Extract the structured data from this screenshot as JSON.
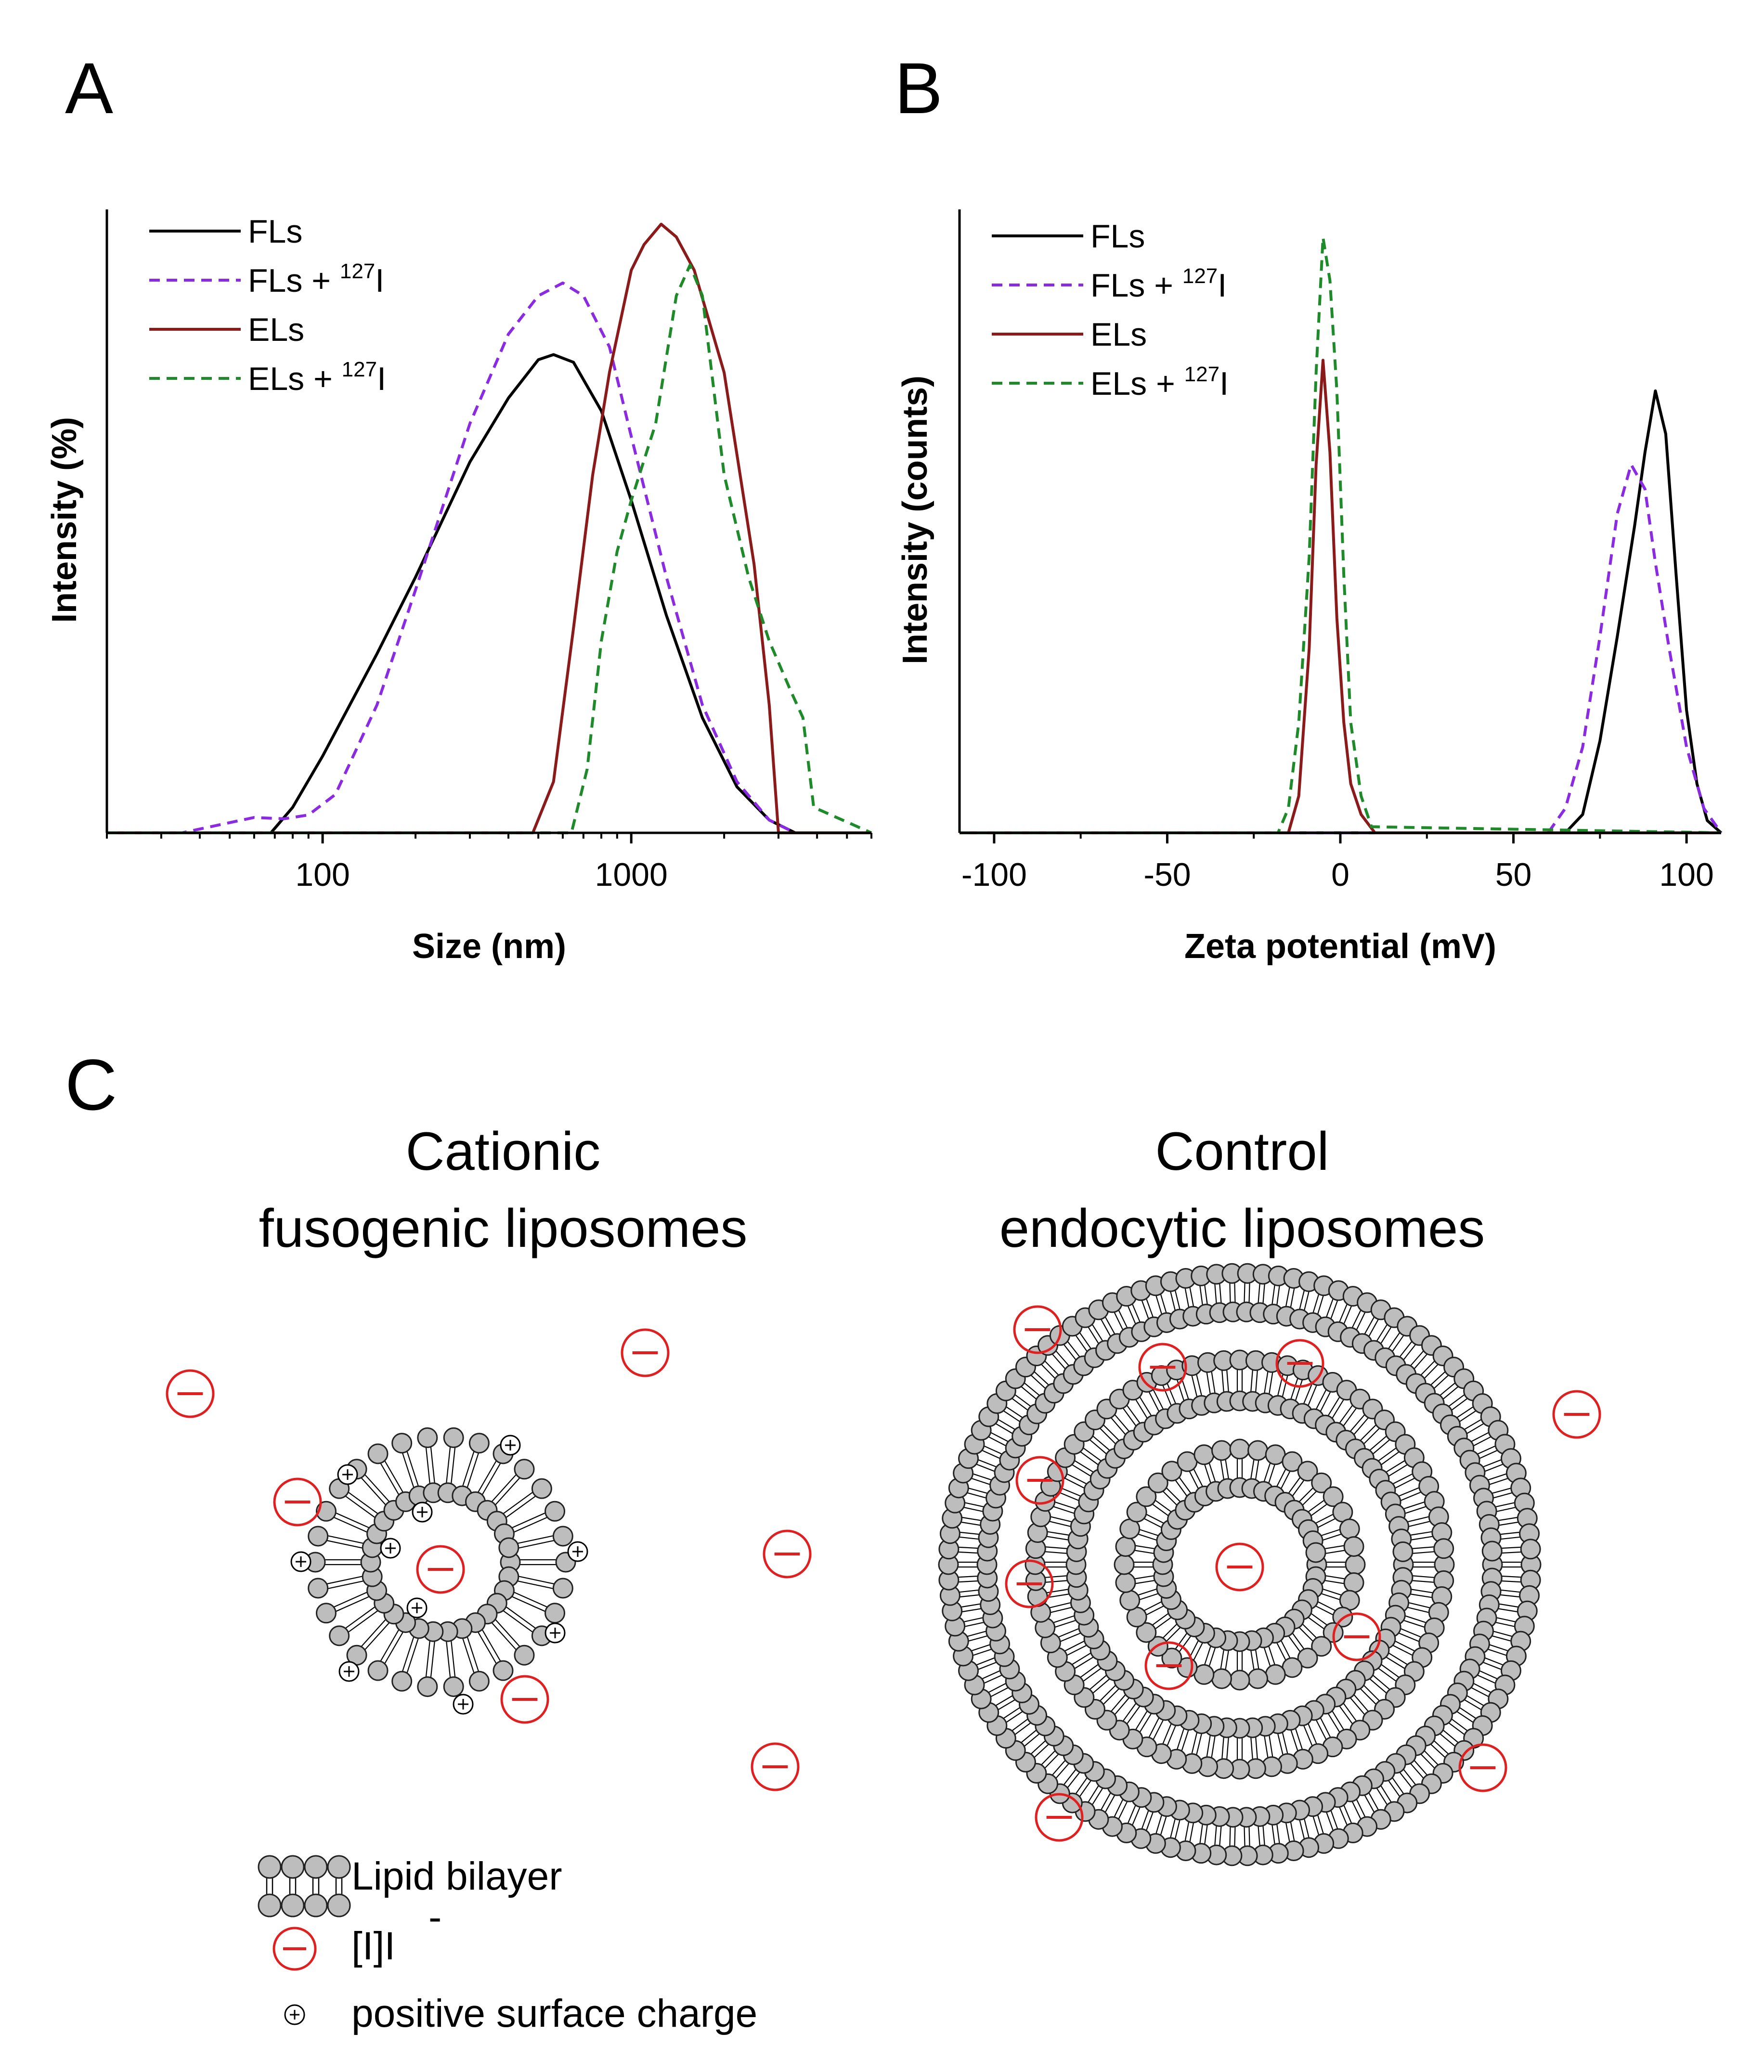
{
  "panels": {
    "a": "A",
    "b": "B",
    "c": "C"
  },
  "colors": {
    "fls": "#000000",
    "fls_iodine": "#8a2be2",
    "els": "#8b1a1a",
    "els_iodine": "#1f8a2a",
    "anion": "#e02020",
    "lipid_head": "#bdbdbd"
  },
  "chart_data": [
    {
      "type": "line",
      "panel": "A",
      "xlabel": "Size (nm)",
      "ylabel": "Intensity (%)",
      "xscale": "log",
      "xlim": [
        20,
        6000
      ],
      "ylim": [
        0,
        24
      ],
      "xticks": [
        100,
        1000
      ],
      "xtick_labels": [
        "100",
        "1000"
      ],
      "legend": "top-left",
      "series": [
        {
          "name": "FLs",
          "sup": "",
          "color": "#000000",
          "style": "solid",
          "x": [
            20,
            68,
            80,
            100,
            150,
            200,
            300,
            400,
            500,
            560,
            650,
            800,
            1000,
            1300,
            1700,
            2200,
            2800,
            3400,
            6000
          ],
          "y": [
            0,
            0,
            1.0,
            3.0,
            7.0,
            10.0,
            14.5,
            17.0,
            18.5,
            18.7,
            18.4,
            16.5,
            13.0,
            8.5,
            4.5,
            1.8,
            0.5,
            0,
            0
          ]
        },
        {
          "name": "FLs + ",
          "sup": "127",
          "suffix": "I",
          "color": "#8a2be2",
          "style": "dashed",
          "x": [
            20,
            35,
            50,
            60,
            75,
            90,
            110,
            150,
            200,
            300,
            400,
            500,
            600,
            700,
            850,
            1000,
            1300,
            1700,
            2200,
            2800,
            3400,
            6000
          ],
          "y": [
            0,
            0,
            0.4,
            0.6,
            0.55,
            0.7,
            1.5,
            5.0,
            9.5,
            16.0,
            19.5,
            21.0,
            21.5,
            21.0,
            19.0,
            15.5,
            10.0,
            5.0,
            2.0,
            0.5,
            0,
            0
          ]
        },
        {
          "name": "ELs",
          "sup": "",
          "color": "#8b1a1a",
          "style": "solid",
          "x": [
            20,
            480,
            560,
            650,
            750,
            850,
            1000,
            1100,
            1250,
            1400,
            1600,
            2000,
            2500,
            2800,
            3000,
            6000
          ],
          "y": [
            0,
            0,
            2.0,
            8.0,
            14.0,
            18.0,
            22.0,
            23.0,
            23.8,
            23.3,
            22.0,
            18.0,
            10.5,
            5.0,
            0,
            0
          ]
        },
        {
          "name": "ELs + ",
          "sup": "127",
          "suffix": "I",
          "color": "#1f8a2a",
          "style": "dashed",
          "x": [
            20,
            640,
            720,
            800,
            900,
            1000,
            1200,
            1400,
            1550,
            1700,
            2000,
            2400,
            2800,
            3300,
            3600,
            3900,
            6000
          ],
          "y": [
            0,
            0,
            2.5,
            7.5,
            11.0,
            13.0,
            16.0,
            21.0,
            22.2,
            21.0,
            14.0,
            10.0,
            7.5,
            5.5,
            4.5,
            1.0,
            0
          ]
        }
      ]
    },
    {
      "type": "line",
      "panel": "B",
      "xlabel": "Zeta potential (mV)",
      "ylabel": "Intensity (counts)",
      "xlim": [
        -110,
        110
      ],
      "ylim": [
        0,
        100
      ],
      "xticks": [
        -100,
        -50,
        0,
        50,
        100
      ],
      "xtick_labels": [
        "-100",
        "-50",
        "0",
        "50",
        "100"
      ],
      "legend": "top-left",
      "series": [
        {
          "name": "FLs",
          "sup": "",
          "color": "#000000",
          "style": "solid",
          "x": [
            -110,
            65,
            70,
            75,
            80,
            85,
            88,
            91,
            94,
            97,
            100,
            103,
            106,
            110
          ],
          "y": [
            0,
            0,
            3,
            15,
            32,
            50,
            62,
            72,
            65,
            42,
            20,
            8,
            2,
            0
          ]
        },
        {
          "name": "FLs + ",
          "sup": "127",
          "suffix": "I",
          "color": "#8a2be2",
          "style": "dashed",
          "x": [
            -110,
            60,
            65,
            70,
            75,
            80,
            84,
            88,
            91,
            95,
            100,
            105,
            110
          ],
          "y": [
            0,
            0,
            4,
            14,
            32,
            52,
            60,
            56,
            44,
            30,
            14,
            4,
            0
          ]
        },
        {
          "name": "ELs",
          "sup": "",
          "color": "#8b1a1a",
          "style": "solid",
          "x": [
            -110,
            -15,
            -12,
            -9,
            -7,
            -5,
            -3,
            -1,
            1,
            3,
            6,
            10,
            110
          ],
          "y": [
            0,
            0,
            6,
            30,
            60,
            77,
            62,
            35,
            18,
            8,
            3,
            0,
            0
          ]
        },
        {
          "name": "ELs + ",
          "sup": "127",
          "suffix": "I",
          "color": "#1f8a2a",
          "style": "dashed",
          "x": [
            -110,
            -18,
            -15,
            -12,
            -9,
            -7,
            -5,
            -3,
            -1,
            1,
            3,
            6,
            9,
            110
          ],
          "y": [
            0,
            0,
            4,
            18,
            45,
            75,
            97,
            90,
            72,
            42,
            18,
            6,
            1,
            0
          ]
        }
      ]
    }
  ],
  "diagram": {
    "left_title_line1": "Cationic",
    "left_title_line2": "fusogenic liposomes",
    "right_title_line1": "Control",
    "right_title_line2": "endocytic liposomes",
    "key": {
      "bilayer_label": "Lipid bilayer",
      "anion_label": "[I]I",
      "anion_charge": "-",
      "positive_label": "positive surface charge"
    }
  }
}
